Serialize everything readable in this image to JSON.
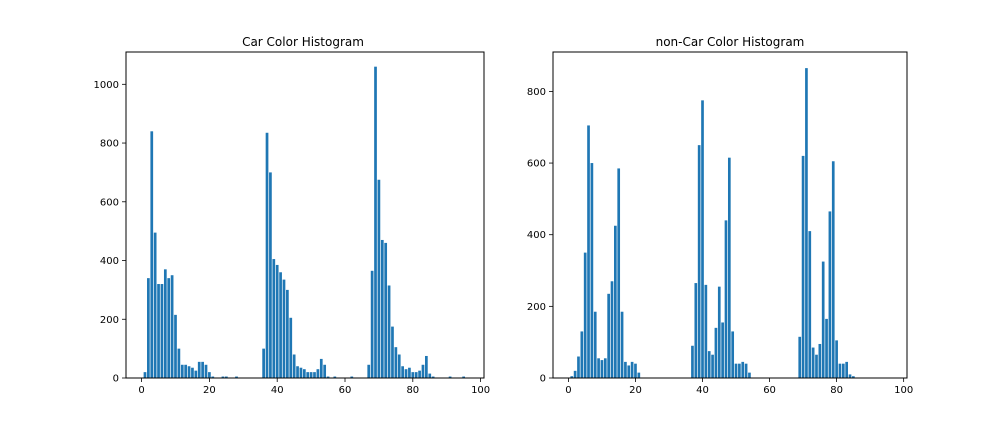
{
  "colors": {
    "bar": "#1f77b4",
    "axis": "#000000",
    "background": "#ffffff"
  },
  "chart_data": [
    {
      "type": "bar",
      "title": "Car Color Histogram",
      "xlabel": "",
      "ylabel": "",
      "xlim": [
        -4.6,
        101
      ],
      "ylim": [
        0,
        1110
      ],
      "xticks": [
        0,
        20,
        40,
        60,
        80,
        100
      ],
      "yticks": [
        0,
        200,
        400,
        600,
        800,
        1000
      ],
      "bar_width": 0.8,
      "grid": false,
      "x": [
        1,
        2,
        3,
        4,
        5,
        6,
        7,
        8,
        9,
        10,
        11,
        12,
        13,
        14,
        15,
        16,
        17,
        18,
        19,
        20,
        21,
        22,
        23,
        24,
        25,
        26,
        27,
        28,
        29,
        30,
        31,
        32,
        33,
        34,
        35,
        36,
        37,
        38,
        39,
        40,
        41,
        42,
        43,
        44,
        45,
        46,
        47,
        48,
        49,
        50,
        51,
        52,
        53,
        54,
        55,
        56,
        57,
        58,
        59,
        60,
        61,
        62,
        63,
        64,
        65,
        66,
        67,
        68,
        69,
        70,
        71,
        72,
        73,
        74,
        75,
        76,
        77,
        78,
        79,
        80,
        81,
        82,
        83,
        84,
        85,
        86,
        87,
        88,
        89,
        90,
        91,
        92,
        93,
        94,
        95
      ],
      "values": [
        20,
        340,
        840,
        495,
        320,
        320,
        370,
        340,
        350,
        215,
        100,
        45,
        45,
        40,
        35,
        25,
        55,
        55,
        45,
        20,
        5,
        0,
        0,
        5,
        5,
        0,
        0,
        5,
        0,
        0,
        0,
        0,
        0,
        0,
        0,
        100,
        835,
        700,
        405,
        385,
        360,
        335,
        300,
        205,
        80,
        40,
        35,
        30,
        20,
        20,
        20,
        30,
        65,
        45,
        5,
        0,
        5,
        0,
        0,
        0,
        0,
        5,
        0,
        0,
        0,
        0,
        45,
        365,
        1060,
        675,
        470,
        460,
        315,
        175,
        105,
        80,
        40,
        30,
        35,
        20,
        20,
        25,
        45,
        75,
        15,
        5,
        0,
        0,
        0,
        0,
        5,
        0,
        0,
        0,
        5
      ]
    },
    {
      "type": "bar",
      "title": "non-Car Color Histogram",
      "xlabel": "",
      "ylabel": "",
      "xlim": [
        -4.6,
        101
      ],
      "ylim": [
        0,
        910
      ],
      "xticks": [
        0,
        20,
        40,
        60,
        80,
        100
      ],
      "yticks": [
        0,
        200,
        400,
        600,
        800
      ],
      "bar_width": 0.8,
      "grid": false,
      "x": [
        1,
        2,
        3,
        4,
        5,
        6,
        7,
        8,
        9,
        10,
        11,
        12,
        13,
        14,
        15,
        16,
        17,
        18,
        19,
        20,
        21,
        22,
        23,
        24,
        25,
        26,
        27,
        28,
        29,
        30,
        31,
        32,
        33,
        34,
        35,
        36,
        37,
        38,
        39,
        40,
        41,
        42,
        43,
        44,
        45,
        46,
        47,
        48,
        49,
        50,
        51,
        52,
        53,
        54,
        55,
        56,
        57,
        58,
        59,
        60,
        61,
        62,
        63,
        64,
        65,
        66,
        67,
        68,
        69,
        70,
        71,
        72,
        73,
        74,
        75,
        76,
        77,
        78,
        79,
        80,
        81,
        82,
        83,
        84,
        85,
        86,
        87,
        88,
        89,
        90,
        91,
        92,
        93,
        94,
        95
      ],
      "values": [
        5,
        20,
        60,
        130,
        350,
        705,
        600,
        185,
        55,
        50,
        55,
        235,
        270,
        425,
        585,
        185,
        45,
        35,
        45,
        40,
        15,
        0,
        0,
        0,
        0,
        0,
        0,
        0,
        0,
        0,
        0,
        0,
        0,
        0,
        0,
        0,
        90,
        265,
        650,
        775,
        260,
        75,
        65,
        140,
        255,
        155,
        440,
        615,
        130,
        40,
        40,
        45,
        40,
        15,
        0,
        0,
        0,
        0,
        0,
        0,
        0,
        0,
        0,
        0,
        0,
        0,
        0,
        0,
        115,
        620,
        865,
        410,
        85,
        65,
        95,
        325,
        165,
        465,
        605,
        105,
        40,
        40,
        45,
        10,
        5,
        0,
        0,
        0,
        0,
        0,
        0,
        0,
        0,
        0,
        0
      ]
    }
  ]
}
